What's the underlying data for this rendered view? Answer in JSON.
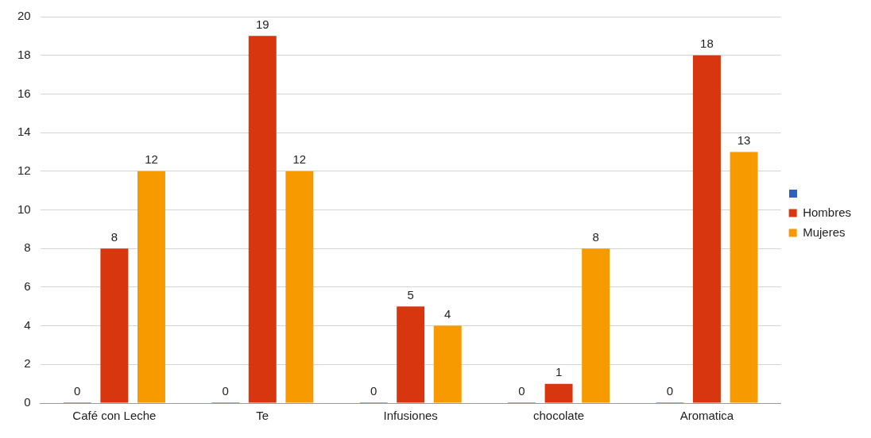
{
  "chart_data": {
    "type": "bar",
    "categories": [
      "Café con Leche",
      "Te",
      "Infusiones",
      "chocolate",
      "Aromatica"
    ],
    "series": [
      {
        "color": "#2f5fbf",
        "values": [
          0,
          0,
          0,
          0,
          0
        ]
      },
      {
        "name": "Hombres",
        "color": "#d8360e",
        "values": [
          8,
          19,
          5,
          1,
          18
        ]
      },
      {
        "name": "Mujeres",
        "color": "#f79a00",
        "values": [
          12,
          12,
          4,
          8,
          13
        ]
      }
    ],
    "ylim": [
      0,
      20
    ],
    "yticks": [
      0,
      2,
      4,
      6,
      8,
      10,
      12,
      14,
      16,
      18,
      20
    ],
    "grid": "y",
    "legend": "right",
    "data_labels": true
  }
}
